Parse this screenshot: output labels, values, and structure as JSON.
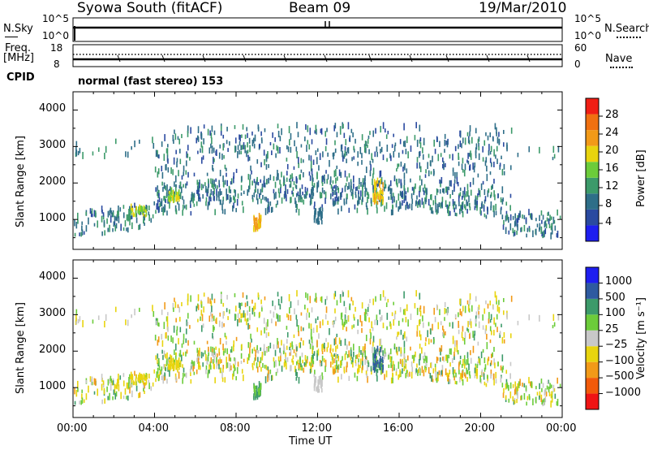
{
  "header": {
    "station": "Syowa South (fitACF)",
    "beam": "Beam 09",
    "date": "19/Mar/2010"
  },
  "strips": {
    "nsky_label": "N.Sky",
    "nsky_ticks": [
      "10^5",
      "10^0"
    ],
    "nsearch_label": "N.Search",
    "nsearch_ticks": [
      "10^5",
      "10^0"
    ],
    "freq_label": "Freq.",
    "freq_unit": "[MHz]",
    "freq_ticks": [
      "18",
      "8"
    ],
    "nave_label": "Nave",
    "nave_ticks": [
      "60",
      "0"
    ],
    "cpid_label": "CPID",
    "cpid_value": "normal (fast stereo) 153"
  },
  "colors": {
    "power": [
      "#1e1ef0",
      "#2a4aa0",
      "#2e6e88",
      "#3c9a6a",
      "#6ccc3a",
      "#e8d40e",
      "#f29a18",
      "#f07010",
      "#f01e14"
    ],
    "velocity": [
      "#f01414",
      "#f25a0a",
      "#f29a18",
      "#e8d40e",
      "#c8c8c8",
      "#6ccc3a",
      "#3c9a6a",
      "#2e5aa0",
      "#1e1ef0"
    ]
  },
  "chart_data": [
    {
      "type": "heatmap",
      "title": "",
      "xlabel": "",
      "ylabel": "Slant Range [km]",
      "xlim": [
        "00:00",
        "00:00"
      ],
      "ylim": [
        180,
        4500
      ],
      "x_ticks": [
        "00:00",
        "04:00",
        "08:00",
        "12:00",
        "16:00",
        "20:00",
        "00:00"
      ],
      "y_ticks": [
        "1000",
        "2000",
        "3000",
        "4000"
      ],
      "colorbar": {
        "label": "Power [dB]",
        "ticks": [
          "28",
          "24",
          "20",
          "16",
          "12",
          "8",
          "4"
        ]
      },
      "features": [
        {
          "time": "09:00",
          "range_km": 800,
          "value_db": 20
        },
        {
          "time": "12:00",
          "range_km": 1000,
          "value_db": 6
        },
        {
          "time": "15:00",
          "range_km": 1600,
          "value_db": 22
        }
      ]
    },
    {
      "type": "heatmap",
      "title": "",
      "xlabel": "Time UT",
      "ylabel": "Slant Range [km]",
      "xlim": [
        "00:00",
        "00:00"
      ],
      "ylim": [
        180,
        4500
      ],
      "x_ticks": [
        "00:00",
        "04:00",
        "08:00",
        "12:00",
        "16:00",
        "20:00",
        "00:00"
      ],
      "y_ticks": [
        "1000",
        "2000",
        "3000",
        "4000"
      ],
      "colorbar": {
        "label": "Velocity [m s⁻¹]",
        "ticks": [
          "1000",
          "500",
          "100",
          "25",
          "−25",
          "−100",
          "−500",
          "−1000"
        ]
      },
      "features": [
        {
          "time": "09:00",
          "range_km": 800,
          "value_ms": 100
        },
        {
          "time": "15:00",
          "range_km": 1800,
          "value_ms": 500
        }
      ]
    }
  ]
}
